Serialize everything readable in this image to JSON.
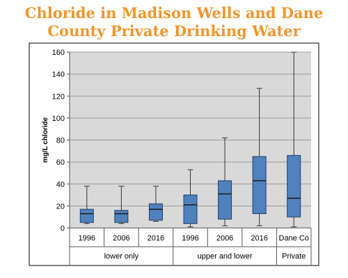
{
  "title_line1": "Chloride in Madison Wells and Dane",
  "title_line2": "County Private Drinking Water",
  "chart_data": {
    "type": "boxplot",
    "ylabel": "mg/L chloride",
    "ylim": [
      0,
      160
    ],
    "yticks": [
      0,
      20,
      40,
      60,
      80,
      100,
      120,
      140,
      160
    ],
    "grid": true,
    "background": "#d9d9d9",
    "box_color": "#4f81bd",
    "categories": [
      "1996",
      "2006",
      "2016",
      "1996",
      "2006",
      "2016",
      "Dane Co"
    ],
    "groups": [
      {
        "label": "lower only",
        "span": [
          0,
          2
        ]
      },
      {
        "label": "upper and lower",
        "span": [
          3,
          5
        ]
      },
      {
        "label": "Private",
        "span": [
          6,
          6
        ]
      }
    ],
    "boxes": [
      {
        "min": 4,
        "q1": 5,
        "median": 13,
        "q3": 17,
        "max": 38
      },
      {
        "min": 4,
        "q1": 5,
        "median": 13,
        "q3": 16,
        "max": 38
      },
      {
        "min": 6,
        "q1": 7,
        "median": 17,
        "q3": 22,
        "max": 38
      },
      {
        "min": 1,
        "q1": 4,
        "median": 21,
        "q3": 30,
        "max": 53
      },
      {
        "min": 2,
        "q1": 8,
        "median": 31,
        "q3": 43,
        "max": 82
      },
      {
        "min": 2,
        "q1": 13,
        "median": 43,
        "q3": 65,
        "max": 127
      },
      {
        "min": 1,
        "q1": 10,
        "median": 27,
        "q3": 66,
        "max": 160
      }
    ]
  }
}
